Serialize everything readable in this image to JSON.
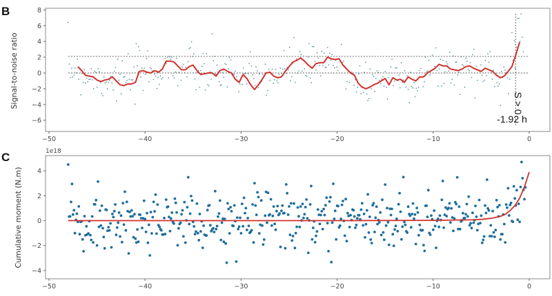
{
  "chart_data": [
    {
      "panel": "B",
      "type": "scatter",
      "title": "",
      "xlabel": "",
      "ylabel": "Signal-to-noise ratio",
      "xlim": [
        -51,
        2
      ],
      "ylim": [
        -7.5,
        8.3
      ],
      "xticks": [
        -50,
        -40,
        -30,
        -20,
        -10,
        0
      ],
      "xtick_labels": [
        "−50",
        "−40",
        "−30",
        "−20",
        "−10",
        "0"
      ],
      "yticks": [
        8,
        6,
        4,
        2,
        0,
        -2,
        -4,
        -6
      ],
      "ytick_labels": [
        "8",
        "6",
        "4",
        "2",
        "0",
        "−2",
        "−4",
        "−6"
      ],
      "grid": false,
      "hlines": [
        {
          "y": 2.1,
          "style": "dashed",
          "color": "#555555",
          "xrange": [
            -48,
            0
          ]
        },
        {
          "y": 0,
          "style": "dashed",
          "color": "#555555",
          "xrange": [
            -48,
            0
          ]
        }
      ],
      "vline": {
        "x": -1.92,
        "style": "dashed",
        "color": "#555555"
      },
      "annotations": [
        {
          "text": "S > 0",
          "rotation": 90,
          "x": -1.6,
          "y": -3
        },
        {
          "text": "-1.92 h",
          "x": -2.3,
          "y": -6.2
        }
      ],
      "series": [
        {
          "name": "SNR samples",
          "kind": "scatter",
          "color": "#3a7f8c",
          "marker_size": 1.2
        },
        {
          "name": "Smoothed SNR",
          "kind": "line",
          "color": "#d0312d",
          "x": [
            -47,
            -46.6,
            -46.2,
            -45.8,
            -45.4,
            -45,
            -44.6,
            -44.2,
            -43.8,
            -43.4,
            -43,
            -42.6,
            -42.2,
            -41.8,
            -41.4,
            -41,
            -40.6,
            -40.2,
            -39.8,
            -39.4,
            -39,
            -38.6,
            -38.2,
            -37.8,
            -37.4,
            -37,
            -36.6,
            -36.2,
            -35.8,
            -35.4,
            -35,
            -34.6,
            -34.2,
            -33.8,
            -33.4,
            -33,
            -32.6,
            -32.2,
            -31.8,
            -31.4,
            -31,
            -30.6,
            -30.2,
            -29.8,
            -29.4,
            -29,
            -28.6,
            -28.2,
            -27.8,
            -27.4,
            -27,
            -26.6,
            -26.2,
            -25.8,
            -25.4,
            -25,
            -24.6,
            -24.2,
            -23.8,
            -23.4,
            -23,
            -22.6,
            -22.2,
            -21.8,
            -21.4,
            -21,
            -20.6,
            -20.2,
            -19.8,
            -19.4,
            -19,
            -18.6,
            -18.2,
            -17.8,
            -17.4,
            -17,
            -16.6,
            -16.2,
            -15.8,
            -15.4,
            -15,
            -14.6,
            -14.2,
            -13.8,
            -13.4,
            -13,
            -12.6,
            -12.2,
            -11.8,
            -11.4,
            -11,
            -10.6,
            -10.2,
            -9.8,
            -9.4,
            -9,
            -8.6,
            -8.2,
            -7.8,
            -7.4,
            -7,
            -6.6,
            -6.2,
            -5.8,
            -5.4,
            -5,
            -4.6,
            -4.2,
            -3.8,
            -3.4,
            -3,
            -2.6,
            -2.2,
            -1.8,
            -1.4,
            -1
          ],
          "y": [
            0.8,
            0.3,
            -0.3,
            -0.4,
            -0.5,
            -0.9,
            -1.1,
            -0.9,
            -0.8,
            -0.5,
            -1.0,
            -1.5,
            -1.6,
            -1.4,
            -1.4,
            -1.2,
            0.2,
            0.3,
            0.1,
            0.0,
            0.3,
            0.1,
            0.5,
            1.5,
            1.5,
            1.4,
            0.9,
            0.4,
            0.4,
            0.8,
            1.0,
            0.3,
            -0.2,
            -0.1,
            0.0,
            0.0,
            -0.4,
            0.3,
            0.5,
            0.2,
            0.0,
            -0.8,
            -1.2,
            -0.2,
            -0.7,
            -1.5,
            -2.1,
            -1.5,
            -0.8,
            0.0,
            0.1,
            -0.4,
            -0.6,
            -0.5,
            0.2,
            0.8,
            1.4,
            1.6,
            1.9,
            1.5,
            1.0,
            0.6,
            1.2,
            1.3,
            1.3,
            2.0,
            1.8,
            1.7,
            1.8,
            1.0,
            0.5,
            0.0,
            -0.3,
            -1.3,
            -1.8,
            -2.0,
            -1.8,
            -1.5,
            -1.3,
            -1.0,
            -0.7,
            -1.5,
            -0.6,
            -0.9,
            -0.8,
            -1.2,
            -0.5,
            -0.8,
            -1.0,
            -0.5,
            -0.5,
            0.0,
            0.3,
            0.6,
            1.1,
            0.9,
            0.9,
            0.5,
            0.4,
            0.3,
            0.5,
            0.8,
            0.9,
            0.6,
            0.4,
            0.2,
            0.6,
            0.4,
            0.2,
            -0.3,
            -0.6,
            -0.4,
            0.2,
            0.8,
            2.3,
            3.9
          ]
        }
      ]
    },
    {
      "panel": "C",
      "type": "scatter",
      "title": "",
      "xlabel": "",
      "ylabel": "Cumulative moment (N.m)",
      "offset_text": "1e18",
      "xlim": [
        -51,
        2
      ],
      "ylim": [
        -4.7,
        5.1
      ],
      "xticks": [
        -50,
        -40,
        -30,
        -20,
        -10,
        0
      ],
      "xtick_labels": [
        "−50",
        "−40",
        "−30",
        "−20",
        "−10",
        "0"
      ],
      "yticks": [
        4,
        2,
        0,
        -2,
        -4
      ],
      "ytick_labels": [
        "4",
        "2",
        "0",
        "−2",
        "−4"
      ],
      "grid": false,
      "series": [
        {
          "name": "Moment samples (×1e18)",
          "kind": "scatter",
          "color": "#1f6e9c",
          "marker_size": 2.3
        },
        {
          "name": "Exponential fit (×1e18)",
          "kind": "line",
          "color": "#d0312d",
          "x": [
            -48,
            -40,
            -30,
            -20,
            -10,
            -6,
            -5,
            -4,
            -3,
            -2.5,
            -2,
            -1.5,
            -1,
            -0.5,
            0
          ],
          "y": [
            0,
            0,
            0,
            0,
            0.02,
            0.06,
            0.1,
            0.18,
            0.35,
            0.5,
            0.8,
            1.2,
            1.8,
            2.7,
            3.9
          ]
        }
      ]
    }
  ],
  "panels": {
    "b": {
      "letter": "B",
      "ylabel": "Signal-to-noise ratio",
      "annot_s": "S > 0",
      "annot_time": "-1.92 h"
    },
    "c": {
      "letter": "C",
      "ylabel": "Cumulative moment (N.m)",
      "offset": "1e18"
    }
  }
}
